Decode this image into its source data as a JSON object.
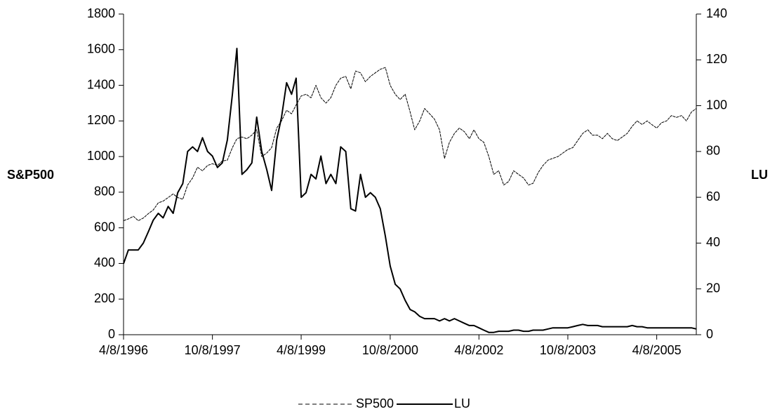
{
  "chart_data": {
    "type": "line",
    "y_label": "S&P500",
    "y2_label": "LU",
    "x": [
      "4/8/1996",
      "5/8/1996",
      "6/8/1996",
      "7/8/1996",
      "8/8/1996",
      "9/8/1996",
      "10/8/1996",
      "11/8/1996",
      "12/8/1996",
      "1/8/1997",
      "2/8/1997",
      "3/8/1997",
      "4/8/1997",
      "5/8/1997",
      "6/8/1997",
      "7/8/1997",
      "8/8/1997",
      "9/8/1997",
      "10/8/1997",
      "11/8/1997",
      "12/8/1997",
      "1/8/1998",
      "2/8/1998",
      "3/8/1998",
      "4/8/1998",
      "5/8/1998",
      "6/8/1998",
      "7/8/1998",
      "8/8/1998",
      "9/8/1998",
      "10/8/1998",
      "11/8/1998",
      "12/8/1998",
      "1/8/1999",
      "2/8/1999",
      "3/8/1999",
      "4/8/1999",
      "5/8/1999",
      "6/8/1999",
      "7/8/1999",
      "8/8/1999",
      "9/8/1999",
      "10/8/1999",
      "11/8/1999",
      "12/8/1999",
      "1/8/2000",
      "2/8/2000",
      "3/8/2000",
      "4/8/2000",
      "5/8/2000",
      "6/8/2000",
      "7/8/2000",
      "8/8/2000",
      "9/8/2000",
      "10/8/2000",
      "11/8/2000",
      "12/8/2000",
      "1/8/2001",
      "2/8/2001",
      "3/8/2001",
      "4/8/2001",
      "5/8/2001",
      "6/8/2001",
      "7/8/2001",
      "8/8/2001",
      "9/8/2001",
      "10/8/2001",
      "11/8/2001",
      "12/8/2001",
      "1/8/2002",
      "2/8/2002",
      "3/8/2002",
      "4/8/2002",
      "5/8/2002",
      "6/8/2002",
      "7/8/2002",
      "8/8/2002",
      "9/8/2002",
      "10/8/2002",
      "11/8/2002",
      "12/8/2002",
      "1/8/2003",
      "2/8/2003",
      "3/8/2003",
      "4/8/2003",
      "5/8/2003",
      "6/8/2003",
      "7/8/2003",
      "8/8/2003",
      "9/8/2003",
      "10/8/2003",
      "11/8/2003",
      "12/8/2003",
      "1/8/2004",
      "2/8/2004",
      "3/8/2004",
      "4/8/2004",
      "5/8/2004",
      "6/8/2004",
      "7/8/2004",
      "8/8/2004",
      "9/8/2004",
      "10/8/2004",
      "11/8/2004",
      "12/8/2004",
      "1/8/2005",
      "2/8/2005",
      "3/8/2005",
      "4/8/2005",
      "5/8/2005",
      "6/8/2005",
      "7/8/2005",
      "8/8/2005",
      "9/8/2005",
      "10/8/2005",
      "11/8/2005",
      "12/8/2005"
    ],
    "series": [
      {
        "name": "SP500",
        "color": "#000000",
        "dashed": true,
        "width": 1,
        "values": [
          640,
          650,
          665,
          640,
          655,
          680,
          700,
          740,
          750,
          770,
          790,
          770,
          760,
          840,
          880,
          940,
          920,
          950,
          960,
          950,
          975,
          980,
          1050,
          1100,
          1110,
          1100,
          1120,
          1150,
          1000,
          1020,
          1050,
          1160,
          1200,
          1260,
          1240,
          1290,
          1340,
          1350,
          1330,
          1400,
          1330,
          1300,
          1330,
          1400,
          1440,
          1450,
          1380,
          1480,
          1470,
          1420,
          1450,
          1470,
          1490,
          1500,
          1400,
          1350,
          1320,
          1350,
          1250,
          1150,
          1200,
          1270,
          1240,
          1210,
          1150,
          990,
          1080,
          1130,
          1160,
          1140,
          1100,
          1150,
          1100,
          1080,
          1000,
          900,
          920,
          840,
          860,
          920,
          900,
          880,
          840,
          850,
          910,
          950,
          980,
          990,
          1000,
          1020,
          1040,
          1050,
          1090,
          1130,
          1150,
          1120,
          1120,
          1100,
          1130,
          1100,
          1090,
          1110,
          1130,
          1170,
          1200,
          1180,
          1200,
          1180,
          1160,
          1190,
          1200,
          1230,
          1220,
          1230,
          1200,
          1250,
          1270
        ]
      },
      {
        "name": "LU",
        "color": "#000000",
        "dashed": false,
        "width": 2,
        "axis": "y2",
        "values": [
          31,
          37,
          37,
          37,
          40,
          45,
          50,
          53,
          51,
          56,
          53,
          62,
          66,
          80,
          82,
          80,
          86,
          80,
          78,
          73,
          75,
          85,
          105,
          125,
          70,
          72,
          75,
          95,
          80,
          72,
          63,
          85,
          95,
          110,
          105,
          112,
          60,
          62,
          70,
          68,
          78,
          66,
          70,
          66,
          82,
          80,
          55,
          54,
          70,
          60,
          62,
          60,
          55,
          43,
          30,
          22,
          20,
          15,
          11,
          10,
          8,
          7,
          7,
          7,
          6,
          7,
          6,
          7,
          6,
          5,
          4,
          4,
          3,
          2,
          1,
          1,
          1.5,
          1.5,
          1.5,
          2,
          2,
          1.5,
          1.5,
          2,
          2,
          2,
          2.5,
          3,
          3,
          3,
          3,
          3.5,
          4,
          4.5,
          4,
          4,
          4,
          3.5,
          3.5,
          3.5,
          3.5,
          3.5,
          3.5,
          4,
          3.5,
          3.5,
          3,
          3,
          3,
          3,
          3,
          3,
          3,
          3,
          3,
          3,
          2.5
        ]
      }
    ],
    "xlim": [
      "4/8/1996",
      "12/8/2005"
    ],
    "xticks": [
      "4/8/1996",
      "10/8/1997",
      "4/8/1999",
      "10/8/2000",
      "4/8/2002",
      "10/8/2003",
      "4/8/2005"
    ],
    "ylim": [
      0,
      1800
    ],
    "yticks": [
      0,
      200,
      400,
      600,
      800,
      1000,
      1200,
      1400,
      1600,
      1800
    ],
    "y2lim": [
      0,
      140
    ],
    "y2ticks": [
      0,
      20,
      40,
      60,
      80,
      100,
      120,
      140
    ],
    "grid": false,
    "legend": "bottom"
  }
}
